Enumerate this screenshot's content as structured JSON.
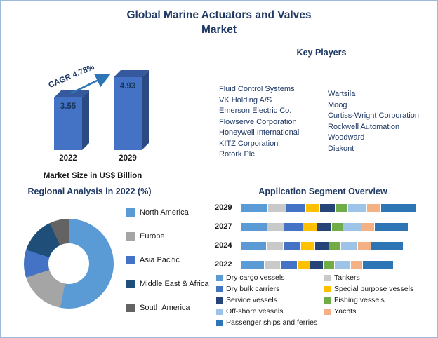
{
  "title": {
    "line1": "Global Marine Actuators and Valves",
    "line2": "Market"
  },
  "key_players": {
    "heading": "Key Players",
    "column1": [
      "Fluid Control Systems",
      "VK Holding A/S",
      "Emerson Electric Co.",
      "Flowserve Corporation",
      "Honeywell International",
      "KITZ Corporation",
      "Rotork Plc"
    ],
    "column2": [
      "Wartsila",
      "Moog",
      "Curtiss-Wright Corporation",
      "Rockwell Automation",
      "Woodward",
      "Diakont"
    ]
  },
  "chart_data": [
    {
      "id": "market_size",
      "type": "bar",
      "title": "Market Size in US$ Billion",
      "categories": [
        "2022",
        "2029"
      ],
      "values": [
        3.55,
        4.93
      ],
      "value_labels": [
        "3.55",
        "4.93"
      ],
      "annotation": "CAGR 4.78%",
      "ylim": [
        0,
        5.5
      ],
      "bar_color": "#4472C4",
      "bar_top_color": "#35599C",
      "bar_side_color": "#2B4A84",
      "arrow_color": "#2E75B6"
    },
    {
      "id": "regional_analysis",
      "type": "pie",
      "donut": true,
      "title": "Regional Analysis in 2022 (%)",
      "labels": [
        "North America",
        "Europe",
        "Asia Pacific",
        "Middle East & Africa",
        "South America"
      ],
      "values": [
        53,
        17,
        10,
        13,
        7
      ],
      "colors": [
        "#5B9BD5",
        "#A5A5A5",
        "#4472C4",
        "#1F4E79",
        "#636363"
      ],
      "legend_position": "right"
    },
    {
      "id": "application_segments",
      "type": "bar",
      "stacked": true,
      "horizontal": true,
      "title": "Application Segment Overview",
      "categories": [
        "2029",
        "2027",
        "2024",
        "2022"
      ],
      "series": [
        {
          "name": "Dry cargo vessels",
          "color": "#5B9BD5",
          "values": [
            30,
            29,
            28,
            26
          ]
        },
        {
          "name": "Tankers",
          "color": "#C9C9C9",
          "values": [
            20,
            19,
            19,
            18
          ]
        },
        {
          "name": "Dry bulk carriers",
          "color": "#4472C4",
          "values": [
            22,
            21,
            20,
            19
          ]
        },
        {
          "name": "Special purpose vessels",
          "color": "#FFC000",
          "values": [
            16,
            16,
            15,
            14
          ]
        },
        {
          "name": "Service vessels",
          "color": "#264478",
          "values": [
            17,
            16,
            16,
            15
          ]
        },
        {
          "name": "Fishing vessels",
          "color": "#70AD47",
          "values": [
            14,
            13,
            13,
            12
          ]
        },
        {
          "name": "Off-shore vessels",
          "color": "#9DC3E6",
          "values": [
            21,
            20,
            19,
            18
          ]
        },
        {
          "name": "Yachts",
          "color": "#F4B183",
          "values": [
            16,
            15,
            15,
            14
          ]
        },
        {
          "name": "Passenger ships and ferries",
          "color": "#2E75B6",
          "values": [
            40,
            38,
            36,
            34
          ]
        }
      ],
      "legend_position": "bottom"
    }
  ]
}
